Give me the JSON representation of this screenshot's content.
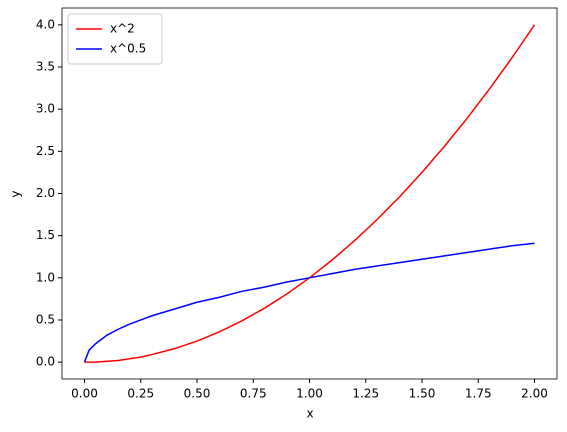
{
  "chart_data": {
    "type": "line",
    "x": [
      0,
      0.02,
      0.05,
      0.1,
      0.15,
      0.2,
      0.25,
      0.3,
      0.4,
      0.5,
      0.6,
      0.7,
      0.8,
      0.9,
      1.0,
      1.1,
      1.2,
      1.3,
      1.4,
      1.5,
      1.6,
      1.7,
      1.8,
      1.9,
      2.0
    ],
    "series": [
      {
        "name": "x^2",
        "color": "#ff0000",
        "values": [
          0,
          0,
          0,
          0.01,
          0.02,
          0.04,
          0.06,
          0.09,
          0.16,
          0.25,
          0.36,
          0.49,
          0.64,
          0.81,
          1,
          1.21,
          1.44,
          1.69,
          1.96,
          2.25,
          2.56,
          2.89,
          3.24,
          3.61,
          4
        ]
      },
      {
        "name": "x^0.5",
        "color": "#0000ff",
        "values": [
          0,
          0.14,
          0.22,
          0.32,
          0.39,
          0.45,
          0.5,
          0.55,
          0.63,
          0.71,
          0.77,
          0.84,
          0.89,
          0.95,
          1,
          1.05,
          1.1,
          1.14,
          1.18,
          1.22,
          1.26,
          1.3,
          1.34,
          1.38,
          1.41
        ]
      }
    ],
    "xlabel": "x",
    "ylabel": "y",
    "xlim": [
      -0.1,
      2.1
    ],
    "ylim": [
      -0.2,
      4.2
    ],
    "xticks": [
      {
        "value": 0,
        "label": "0.00"
      },
      {
        "value": 0.25,
        "label": "0.25"
      },
      {
        "value": 0.5,
        "label": "0.50"
      },
      {
        "value": 0.75,
        "label": "0.75"
      },
      {
        "value": 1,
        "label": "1.00"
      },
      {
        "value": 1.25,
        "label": "1.25"
      },
      {
        "value": 1.5,
        "label": "1.50"
      },
      {
        "value": 1.75,
        "label": "1.75"
      },
      {
        "value": 2,
        "label": "2.00"
      }
    ],
    "yticks": [
      {
        "value": 0,
        "label": "0.0"
      },
      {
        "value": 0.5,
        "label": "0.5"
      },
      {
        "value": 1,
        "label": "1.0"
      },
      {
        "value": 1.5,
        "label": "1.5"
      },
      {
        "value": 2,
        "label": "2.0"
      },
      {
        "value": 2.5,
        "label": "2.5"
      },
      {
        "value": 3,
        "label": "3.0"
      },
      {
        "value": 3.5,
        "label": "3.5"
      },
      {
        "value": 4,
        "label": "4.0"
      }
    ],
    "grid": false,
    "legend": "upper left"
  }
}
